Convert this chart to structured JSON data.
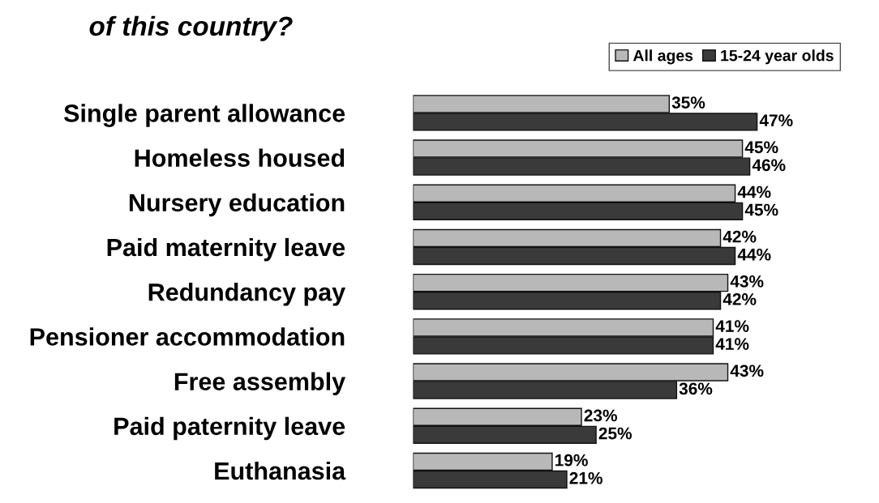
{
  "chart_data": {
    "type": "bar",
    "orientation": "horizontal",
    "title": "of this country?",
    "categories": [
      "Single parent allowance",
      "Homeless housed",
      "Nursery education",
      "Paid maternity leave",
      "Redundancy pay",
      "Pensioner accommodation",
      "Free assembly",
      "Paid paternity leave",
      "Euthanasia"
    ],
    "series": [
      {
        "name": "All ages",
        "color": "#b8b8b8",
        "values": [
          35,
          45,
          44,
          42,
          43,
          41,
          43,
          23,
          19
        ],
        "value_labels": [
          "35%",
          "45%",
          "44%",
          "42%",
          "43%",
          "41%",
          "43%",
          "23%",
          "19%"
        ]
      },
      {
        "name": "15-24 year olds",
        "color": "#3a3a3a",
        "values": [
          47,
          46,
          45,
          44,
          42,
          41,
          36,
          25,
          21
        ],
        "value_labels": [
          "47%",
          "46%",
          "45%",
          "44%",
          "42%",
          "41%",
          "36%",
          "25%",
          "21%"
        ]
      }
    ],
    "relative": false,
    "legend": "top right",
    "grid": false,
    "tick_labels": "y"
  }
}
